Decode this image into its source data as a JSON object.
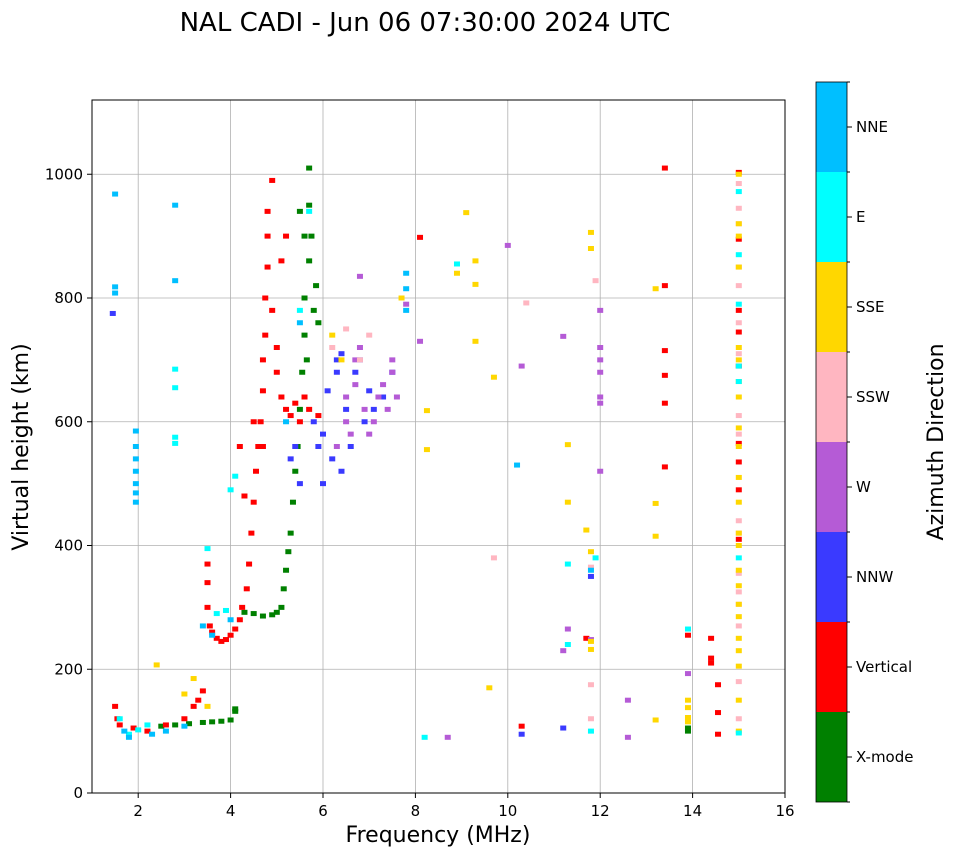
{
  "chart_data": {
    "type": "scatter",
    "title": "NAL CADI - Jun 06 07:30:00 2024 UTC",
    "xlabel": "Frequency (MHz)",
    "ylabel": "Virtual height (km)",
    "xlim": [
      1,
      16
    ],
    "ylim": [
      0,
      1120
    ],
    "xticks": [
      2,
      4,
      6,
      8,
      10,
      12,
      14,
      16
    ],
    "yticks": [
      0,
      200,
      400,
      600,
      800,
      1000
    ],
    "grid": true,
    "colorbar": {
      "label": "Azimuth Direction",
      "categories": [
        "X-mode",
        "Vertical",
        "NNW",
        "W",
        "SSW",
        "SSE",
        "E",
        "NNE"
      ],
      "colors": [
        "#008000",
        "#ff0000",
        "#3a3aff",
        "#b55bd6",
        "#ffb6c1",
        "#ffd700",
        "#00ffff",
        "#00bfff"
      ]
    },
    "series": [
      {
        "name": "X-mode",
        "points": [
          [
            2.5,
            108
          ],
          [
            2.8,
            110
          ],
          [
            3.1,
            112
          ],
          [
            3.4,
            114
          ],
          [
            3.6,
            115
          ],
          [
            3.8,
            116
          ],
          [
            4.0,
            118
          ],
          [
            4.1,
            132
          ],
          [
            4.1,
            136
          ],
          [
            4.3,
            292
          ],
          [
            4.5,
            290
          ],
          [
            4.7,
            286
          ],
          [
            4.9,
            288
          ],
          [
            5.0,
            292
          ],
          [
            5.1,
            300
          ],
          [
            5.15,
            330
          ],
          [
            5.2,
            360
          ],
          [
            5.25,
            390
          ],
          [
            5.3,
            420
          ],
          [
            5.35,
            470
          ],
          [
            5.4,
            520
          ],
          [
            5.45,
            560
          ],
          [
            5.5,
            620
          ],
          [
            5.55,
            680
          ],
          [
            5.6,
            740
          ],
          [
            5.6,
            800
          ],
          [
            5.7,
            860
          ],
          [
            5.6,
            900
          ],
          [
            5.7,
            950
          ],
          [
            5.7,
            1010
          ],
          [
            5.8,
            780
          ],
          [
            5.85,
            820
          ],
          [
            5.9,
            760
          ],
          [
            5.5,
            940
          ],
          [
            5.65,
            700
          ],
          [
            5.75,
            900
          ],
          [
            13.9,
            105
          ],
          [
            13.9,
            100
          ]
        ]
      },
      {
        "name": "Vertical",
        "points": [
          [
            1.5,
            140
          ],
          [
            1.55,
            120
          ],
          [
            1.6,
            110
          ],
          [
            1.9,
            105
          ],
          [
            2.2,
            100
          ],
          [
            2.6,
            110
          ],
          [
            3.0,
            120
          ],
          [
            3.2,
            140
          ],
          [
            3.3,
            150
          ],
          [
            3.4,
            165
          ],
          [
            3.5,
            370
          ],
          [
            3.5,
            340
          ],
          [
            3.5,
            300
          ],
          [
            3.55,
            270
          ],
          [
            3.6,
            260
          ],
          [
            3.7,
            250
          ],
          [
            3.8,
            245
          ],
          [
            3.9,
            248
          ],
          [
            4.0,
            255
          ],
          [
            4.1,
            265
          ],
          [
            4.2,
            280
          ],
          [
            4.25,
            300
          ],
          [
            4.35,
            330
          ],
          [
            4.4,
            370
          ],
          [
            4.45,
            420
          ],
          [
            4.5,
            470
          ],
          [
            4.55,
            520
          ],
          [
            4.6,
            560
          ],
          [
            4.65,
            600
          ],
          [
            4.7,
            650
          ],
          [
            4.7,
            700
          ],
          [
            4.75,
            740
          ],
          [
            4.75,
            800
          ],
          [
            4.8,
            850
          ],
          [
            4.8,
            900
          ],
          [
            4.8,
            940
          ],
          [
            4.9,
            990
          ],
          [
            5.0,
            680
          ],
          [
            5.1,
            640
          ],
          [
            5.2,
            620
          ],
          [
            5.3,
            610
          ],
          [
            5.4,
            630
          ],
          [
            5.5,
            600
          ],
          [
            5.6,
            640
          ],
          [
            5.7,
            620
          ],
          [
            5.9,
            610
          ],
          [
            4.5,
            600
          ],
          [
            4.7,
            560
          ],
          [
            4.3,
            480
          ],
          [
            4.2,
            560
          ],
          [
            4.9,
            780
          ],
          [
            5.0,
            720
          ],
          [
            5.2,
            900
          ],
          [
            5.1,
            860
          ],
          [
            8.1,
            898
          ],
          [
            10.3,
            108
          ],
          [
            11.7,
            250
          ],
          [
            13.4,
            1010
          ],
          [
            13.4,
            820
          ],
          [
            13.4,
            715
          ],
          [
            13.4,
            675
          ],
          [
            13.4,
            630
          ],
          [
            13.4,
            527
          ],
          [
            13.9,
            255
          ],
          [
            14.4,
            250
          ],
          [
            14.4,
            210
          ],
          [
            14.4,
            218
          ],
          [
            14.55,
            175
          ],
          [
            14.55,
            130
          ],
          [
            14.55,
            95
          ],
          [
            15.0,
            1003
          ],
          [
            15.0,
            895
          ],
          [
            15.0,
            780
          ],
          [
            15.0,
            745
          ],
          [
            15.0,
            690
          ],
          [
            15.0,
            565
          ],
          [
            15.0,
            535
          ],
          [
            15.0,
            490
          ],
          [
            15.0,
            410
          ]
        ]
      },
      {
        "name": "NNW",
        "points": [
          [
            1.45,
            775
          ],
          [
            5.3,
            540
          ],
          [
            5.5,
            500
          ],
          [
            6.0,
            580
          ],
          [
            6.2,
            540
          ],
          [
            6.4,
            520
          ],
          [
            6.6,
            560
          ],
          [
            6.9,
            600
          ],
          [
            6.1,
            650
          ],
          [
            6.3,
            680
          ],
          [
            6.5,
            620
          ],
          [
            7.0,
            650
          ],
          [
            7.3,
            640
          ],
          [
            6.7,
            680
          ],
          [
            7.5,
            680
          ],
          [
            6.3,
            700
          ],
          [
            5.8,
            600
          ],
          [
            6.8,
            700
          ],
          [
            5.9,
            560
          ],
          [
            6.0,
            500
          ],
          [
            11.8,
            350
          ],
          [
            11.2,
            105
          ],
          [
            10.3,
            95
          ],
          [
            5.4,
            560
          ],
          [
            6.4,
            710
          ],
          [
            7.1,
            620
          ]
        ]
      },
      {
        "name": "W",
        "points": [
          [
            6.3,
            560
          ],
          [
            6.5,
            600
          ],
          [
            6.5,
            640
          ],
          [
            6.7,
            660
          ],
          [
            6.7,
            700
          ],
          [
            6.9,
            620
          ],
          [
            7.0,
            580
          ],
          [
            7.1,
            600
          ],
          [
            7.2,
            640
          ],
          [
            7.3,
            660
          ],
          [
            7.5,
            680
          ],
          [
            7.5,
            700
          ],
          [
            6.6,
            580
          ],
          [
            6.8,
            720
          ],
          [
            7.4,
            620
          ],
          [
            7.6,
            640
          ],
          [
            12.0,
            780
          ],
          [
            12.0,
            720
          ],
          [
            12.0,
            700
          ],
          [
            12.0,
            680
          ],
          [
            12.0,
            640
          ],
          [
            12.0,
            630
          ],
          [
            12.0,
            520
          ],
          [
            10.0,
            885
          ],
          [
            10.3,
            690
          ],
          [
            11.2,
            738
          ],
          [
            11.2,
            230
          ],
          [
            11.3,
            265
          ],
          [
            12.6,
            150
          ],
          [
            12.6,
            90
          ],
          [
            13.9,
            193
          ],
          [
            8.7,
            90
          ],
          [
            7.8,
            790
          ],
          [
            8.1,
            730
          ],
          [
            11.8,
            248
          ],
          [
            6.8,
            835
          ]
        ]
      },
      {
        "name": "SSW",
        "points": [
          [
            6.5,
            750
          ],
          [
            6.8,
            700
          ],
          [
            7.0,
            740
          ],
          [
            6.2,
            720
          ],
          [
            9.7,
            380
          ],
          [
            10.4,
            792
          ],
          [
            11.9,
            828
          ],
          [
            11.8,
            175
          ],
          [
            11.8,
            120
          ],
          [
            11.8,
            365
          ],
          [
            15.0,
            985
          ],
          [
            15.0,
            945
          ],
          [
            15.0,
            920
          ],
          [
            15.0,
            850
          ],
          [
            15.0,
            820
          ],
          [
            15.0,
            760
          ],
          [
            15.0,
            710
          ],
          [
            15.0,
            610
          ],
          [
            15.0,
            580
          ],
          [
            15.0,
            440
          ],
          [
            15.0,
            420
          ],
          [
            15.0,
            355
          ],
          [
            15.0,
            325
          ],
          [
            15.0,
            305
          ],
          [
            15.0,
            270
          ],
          [
            15.0,
            180
          ],
          [
            15.0,
            120
          ]
        ]
      },
      {
        "name": "SSE",
        "points": [
          [
            2.4,
            207
          ],
          [
            3.2,
            185
          ],
          [
            3.0,
            160
          ],
          [
            3.5,
            140
          ],
          [
            6.2,
            740
          ],
          [
            6.4,
            700
          ],
          [
            7.7,
            800
          ],
          [
            8.25,
            618
          ],
          [
            8.25,
            555
          ],
          [
            8.9,
            840
          ],
          [
            9.1,
            938
          ],
          [
            9.3,
            860
          ],
          [
            9.3,
            822
          ],
          [
            9.3,
            730
          ],
          [
            9.6,
            170
          ],
          [
            9.7,
            672
          ],
          [
            11.3,
            563
          ],
          [
            11.3,
            470
          ],
          [
            11.7,
            425
          ],
          [
            11.8,
            906
          ],
          [
            11.8,
            880
          ],
          [
            11.8,
            390
          ],
          [
            11.8,
            245
          ],
          [
            11.8,
            232
          ],
          [
            13.2,
            815
          ],
          [
            13.2,
            468
          ],
          [
            13.2,
            415
          ],
          [
            13.2,
            118
          ],
          [
            13.9,
            150
          ],
          [
            13.9,
            138
          ],
          [
            13.9,
            122
          ],
          [
            13.9,
            115
          ],
          [
            15.0,
            1000
          ],
          [
            15.0,
            920
          ],
          [
            15.0,
            900
          ],
          [
            15.0,
            850
          ],
          [
            15.0,
            720
          ],
          [
            15.0,
            700
          ],
          [
            15.0,
            665
          ],
          [
            15.0,
            640
          ],
          [
            15.0,
            590
          ],
          [
            15.0,
            560
          ],
          [
            15.0,
            510
          ],
          [
            15.0,
            470
          ],
          [
            15.0,
            420
          ],
          [
            15.0,
            400
          ],
          [
            15.0,
            360
          ],
          [
            15.0,
            335
          ],
          [
            15.0,
            305
          ],
          [
            15.0,
            285
          ],
          [
            15.0,
            250
          ],
          [
            15.0,
            230
          ],
          [
            15.0,
            205
          ],
          [
            15.0,
            150
          ],
          [
            15.0,
            100
          ]
        ]
      },
      {
        "name": "E",
        "points": [
          [
            1.6,
            120
          ],
          [
            1.8,
            95
          ],
          [
            2.2,
            110
          ],
          [
            2.0,
            102
          ],
          [
            2.8,
            655
          ],
          [
            2.8,
            685
          ],
          [
            2.8,
            575
          ],
          [
            2.8,
            565
          ],
          [
            3.5,
            395
          ],
          [
            3.7,
            290
          ],
          [
            3.9,
            295
          ],
          [
            4.1,
            512
          ],
          [
            4.0,
            490
          ],
          [
            5.5,
            780
          ],
          [
            5.7,
            940
          ],
          [
            8.2,
            90
          ],
          [
            8.9,
            855
          ],
          [
            11.3,
            370
          ],
          [
            11.3,
            240
          ],
          [
            11.8,
            100
          ],
          [
            11.9,
            380
          ],
          [
            13.9,
            265
          ],
          [
            15.0,
            972
          ],
          [
            15.0,
            870
          ],
          [
            15.0,
            790
          ],
          [
            15.0,
            690
          ],
          [
            15.0,
            665
          ],
          [
            15.0,
            380
          ],
          [
            15.0,
            97
          ]
        ]
      },
      {
        "name": "NNE",
        "points": [
          [
            1.5,
            968
          ],
          [
            1.5,
            818
          ],
          [
            1.5,
            808
          ],
          [
            1.95,
            585
          ],
          [
            1.95,
            560
          ],
          [
            1.95,
            540
          ],
          [
            1.95,
            520
          ],
          [
            1.95,
            500
          ],
          [
            1.95,
            485
          ],
          [
            1.95,
            470
          ],
          [
            2.8,
            950
          ],
          [
            2.8,
            828
          ],
          [
            1.7,
            100
          ],
          [
            1.8,
            90
          ],
          [
            2.3,
            95
          ],
          [
            2.6,
            100
          ],
          [
            3.0,
            108
          ],
          [
            3.4,
            270
          ],
          [
            3.6,
            255
          ],
          [
            4.0,
            280
          ],
          [
            5.2,
            600
          ],
          [
            5.5,
            760
          ],
          [
            7.8,
            840
          ],
          [
            7.8,
            815
          ],
          [
            7.8,
            780
          ],
          [
            10.2,
            530
          ],
          [
            11.8,
            360
          ]
        ]
      }
    ]
  }
}
